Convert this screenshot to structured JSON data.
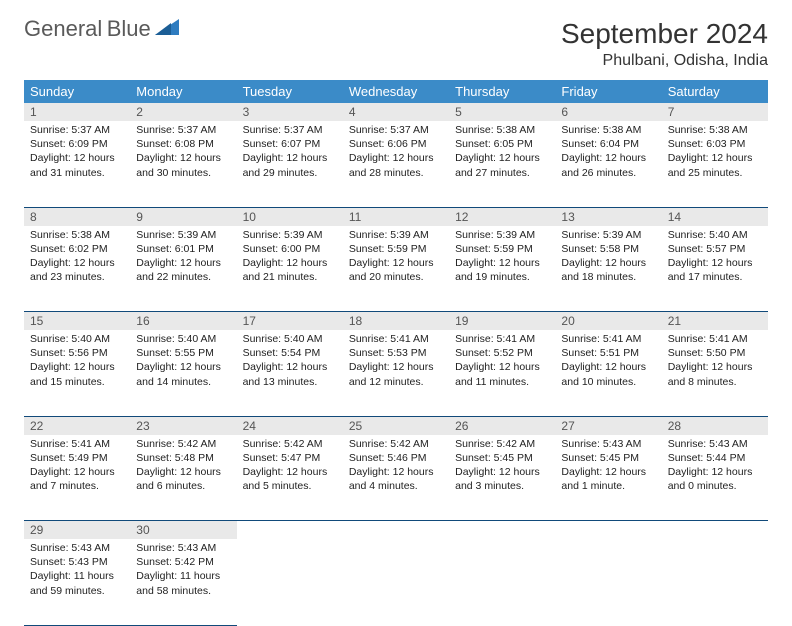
{
  "logo": {
    "word1": "General",
    "word2": "Blue"
  },
  "title": "September 2024",
  "location": "Phulbani, Odisha, India",
  "colors": {
    "header_bg": "#3b8bc8",
    "header_text": "#ffffff",
    "daynum_bg": "#e9e9e9",
    "daynum_text": "#555555",
    "cell_border": "#114a7a",
    "logo_gray": "#5a5a5a",
    "logo_blue": "#2e7cc0"
  },
  "weekdays": [
    "Sunday",
    "Monday",
    "Tuesday",
    "Wednesday",
    "Thursday",
    "Friday",
    "Saturday"
  ],
  "weeks": [
    [
      {
        "n": "1",
        "sr": "Sunrise: 5:37 AM",
        "ss": "Sunset: 6:09 PM",
        "dl": "Daylight: 12 hours and 31 minutes."
      },
      {
        "n": "2",
        "sr": "Sunrise: 5:37 AM",
        "ss": "Sunset: 6:08 PM",
        "dl": "Daylight: 12 hours and 30 minutes."
      },
      {
        "n": "3",
        "sr": "Sunrise: 5:37 AM",
        "ss": "Sunset: 6:07 PM",
        "dl": "Daylight: 12 hours and 29 minutes."
      },
      {
        "n": "4",
        "sr": "Sunrise: 5:37 AM",
        "ss": "Sunset: 6:06 PM",
        "dl": "Daylight: 12 hours and 28 minutes."
      },
      {
        "n": "5",
        "sr": "Sunrise: 5:38 AM",
        "ss": "Sunset: 6:05 PM",
        "dl": "Daylight: 12 hours and 27 minutes."
      },
      {
        "n": "6",
        "sr": "Sunrise: 5:38 AM",
        "ss": "Sunset: 6:04 PM",
        "dl": "Daylight: 12 hours and 26 minutes."
      },
      {
        "n": "7",
        "sr": "Sunrise: 5:38 AM",
        "ss": "Sunset: 6:03 PM",
        "dl": "Daylight: 12 hours and 25 minutes."
      }
    ],
    [
      {
        "n": "8",
        "sr": "Sunrise: 5:38 AM",
        "ss": "Sunset: 6:02 PM",
        "dl": "Daylight: 12 hours and 23 minutes."
      },
      {
        "n": "9",
        "sr": "Sunrise: 5:39 AM",
        "ss": "Sunset: 6:01 PM",
        "dl": "Daylight: 12 hours and 22 minutes."
      },
      {
        "n": "10",
        "sr": "Sunrise: 5:39 AM",
        "ss": "Sunset: 6:00 PM",
        "dl": "Daylight: 12 hours and 21 minutes."
      },
      {
        "n": "11",
        "sr": "Sunrise: 5:39 AM",
        "ss": "Sunset: 5:59 PM",
        "dl": "Daylight: 12 hours and 20 minutes."
      },
      {
        "n": "12",
        "sr": "Sunrise: 5:39 AM",
        "ss": "Sunset: 5:59 PM",
        "dl": "Daylight: 12 hours and 19 minutes."
      },
      {
        "n": "13",
        "sr": "Sunrise: 5:39 AM",
        "ss": "Sunset: 5:58 PM",
        "dl": "Daylight: 12 hours and 18 minutes."
      },
      {
        "n": "14",
        "sr": "Sunrise: 5:40 AM",
        "ss": "Sunset: 5:57 PM",
        "dl": "Daylight: 12 hours and 17 minutes."
      }
    ],
    [
      {
        "n": "15",
        "sr": "Sunrise: 5:40 AM",
        "ss": "Sunset: 5:56 PM",
        "dl": "Daylight: 12 hours and 15 minutes."
      },
      {
        "n": "16",
        "sr": "Sunrise: 5:40 AM",
        "ss": "Sunset: 5:55 PM",
        "dl": "Daylight: 12 hours and 14 minutes."
      },
      {
        "n": "17",
        "sr": "Sunrise: 5:40 AM",
        "ss": "Sunset: 5:54 PM",
        "dl": "Daylight: 12 hours and 13 minutes."
      },
      {
        "n": "18",
        "sr": "Sunrise: 5:41 AM",
        "ss": "Sunset: 5:53 PM",
        "dl": "Daylight: 12 hours and 12 minutes."
      },
      {
        "n": "19",
        "sr": "Sunrise: 5:41 AM",
        "ss": "Sunset: 5:52 PM",
        "dl": "Daylight: 12 hours and 11 minutes."
      },
      {
        "n": "20",
        "sr": "Sunrise: 5:41 AM",
        "ss": "Sunset: 5:51 PM",
        "dl": "Daylight: 12 hours and 10 minutes."
      },
      {
        "n": "21",
        "sr": "Sunrise: 5:41 AM",
        "ss": "Sunset: 5:50 PM",
        "dl": "Daylight: 12 hours and 8 minutes."
      }
    ],
    [
      {
        "n": "22",
        "sr": "Sunrise: 5:41 AM",
        "ss": "Sunset: 5:49 PM",
        "dl": "Daylight: 12 hours and 7 minutes."
      },
      {
        "n": "23",
        "sr": "Sunrise: 5:42 AM",
        "ss": "Sunset: 5:48 PM",
        "dl": "Daylight: 12 hours and 6 minutes."
      },
      {
        "n": "24",
        "sr": "Sunrise: 5:42 AM",
        "ss": "Sunset: 5:47 PM",
        "dl": "Daylight: 12 hours and 5 minutes."
      },
      {
        "n": "25",
        "sr": "Sunrise: 5:42 AM",
        "ss": "Sunset: 5:46 PM",
        "dl": "Daylight: 12 hours and 4 minutes."
      },
      {
        "n": "26",
        "sr": "Sunrise: 5:42 AM",
        "ss": "Sunset: 5:45 PM",
        "dl": "Daylight: 12 hours and 3 minutes."
      },
      {
        "n": "27",
        "sr": "Sunrise: 5:43 AM",
        "ss": "Sunset: 5:45 PM",
        "dl": "Daylight: 12 hours and 1 minute."
      },
      {
        "n": "28",
        "sr": "Sunrise: 5:43 AM",
        "ss": "Sunset: 5:44 PM",
        "dl": "Daylight: 12 hours and 0 minutes."
      }
    ],
    [
      {
        "n": "29",
        "sr": "Sunrise: 5:43 AM",
        "ss": "Sunset: 5:43 PM",
        "dl": "Daylight: 11 hours and 59 minutes."
      },
      {
        "n": "30",
        "sr": "Sunrise: 5:43 AM",
        "ss": "Sunset: 5:42 PM",
        "dl": "Daylight: 11 hours and 58 minutes."
      },
      null,
      null,
      null,
      null,
      null
    ]
  ]
}
